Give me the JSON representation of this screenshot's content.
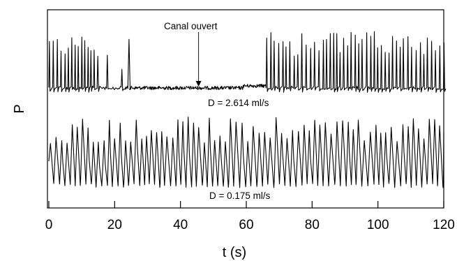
{
  "chart_data": {
    "type": "line",
    "title": "",
    "xlabel": "t (s)",
    "ylabel": "P",
    "xlim": [
      0,
      120
    ],
    "x_ticks": [
      0,
      20,
      40,
      60,
      80,
      100,
      120
    ],
    "y_ticks": "none",
    "grid": false,
    "legend": "none",
    "series": [
      {
        "label": "D = 2.614 ml/s",
        "line_color": "#000000",
        "baseline_level": 0.07,
        "segments": [
          {
            "t_start": 0,
            "t_end": 14,
            "behavior": "periodic spikes",
            "period_s": 1.2,
            "peak_level_range": [
              0.55,
              0.95
            ]
          },
          {
            "t_start": 14,
            "t_end": 22,
            "behavior": "intermittent spikes",
            "peak_level_range": [
              0.3,
              0.6
            ]
          },
          {
            "t_start": 24,
            "t_end": 24.5,
            "behavior": "isolated spike",
            "peak_level_range": [
              0.85,
              0.85
            ]
          },
          {
            "t_start": 25,
            "t_end": 59,
            "behavior": "noisy flat baseline (open channel)"
          },
          {
            "t_start": 59,
            "t_end": 66,
            "behavior": "noisy, slightly raised baseline"
          },
          {
            "t_start": 66,
            "t_end": 120,
            "behavior": "bursts of periodic spikes",
            "period_s": 1.3,
            "peak_level_range": [
              0.55,
              1.0
            ]
          }
        ]
      },
      {
        "label": "D = 0.175 ml/s",
        "line_color": "#000000",
        "baseline_level": 0.05,
        "segments": [
          {
            "t_start": 0,
            "t_end": 120,
            "behavior": "sawtooth oscillation",
            "period_s": 1.65,
            "peak_level_range": [
              0.6,
              1.0
            ]
          }
        ]
      }
    ],
    "annotations": [
      {
        "text": "Canal ouvert",
        "points_to_t": 45.5
      }
    ]
  }
}
